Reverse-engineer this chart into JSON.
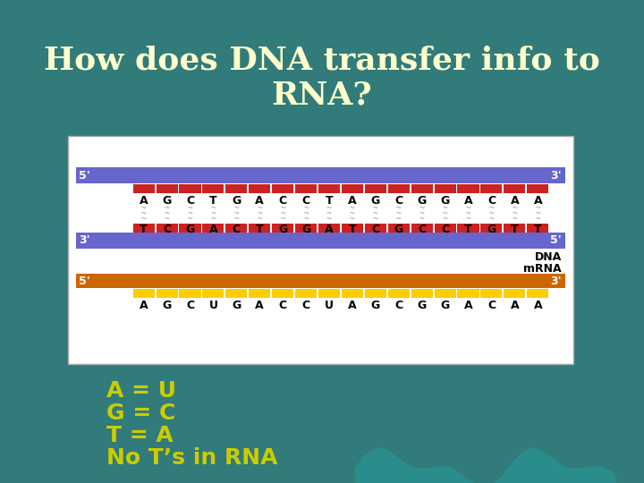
{
  "title": "How does DNA transfer info to\nRNA?",
  "title_color": "#FFFFCC",
  "title_fontsize": 26,
  "bg_color": "#317B7B",
  "box_bg": "#FFFFFF",
  "dna_top_strand": [
    "A",
    "G",
    "C",
    "T",
    "G",
    "A",
    "C",
    "C",
    "T",
    "A",
    "G",
    "C",
    "G",
    "G",
    "A",
    "C",
    "A",
    "A"
  ],
  "dna_bot_strand": [
    "T",
    "C",
    "G",
    "A",
    "C",
    "T",
    "G",
    "G",
    "A",
    "T",
    "C",
    "G",
    "C",
    "C",
    "T",
    "G",
    "T",
    "T"
  ],
  "rna_strand": [
    "A",
    "G",
    "C",
    "U",
    "G",
    "A",
    "C",
    "C",
    "U",
    "A",
    "G",
    "C",
    "G",
    "G",
    "A",
    "C",
    "A",
    "A"
  ],
  "dna_blue_color": "#6666CC",
  "dna_red_color": "#CC2222",
  "rna_orange_color": "#CC6600",
  "rna_yellow_color": "#FFCC00",
  "wavy_color": "#999999",
  "label_color_yellow": "#CCCC00",
  "bullet_colors": [
    "#CCCC00",
    "#CCCC00",
    "#CCCC00",
    "#CCCC00"
  ],
  "rules": [
    "A = U",
    "G = C",
    "T = A",
    "No T’s in RNA"
  ],
  "rules_color": "#CCCC00",
  "rules_fontsize": 18
}
